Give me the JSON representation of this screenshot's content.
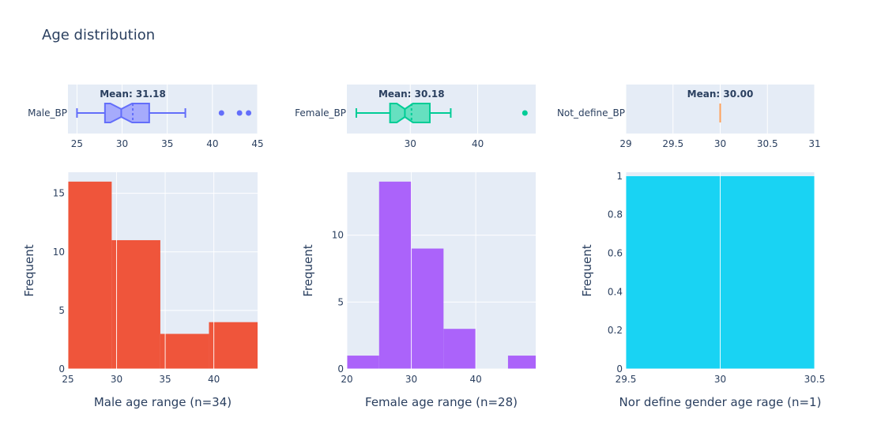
{
  "chart_data": {
    "title": "Age distribution",
    "panels": [
      {
        "id": "male",
        "box": {
          "name": "Male_BP",
          "color": "#636efa",
          "fill": "#a6abfc",
          "min": 25,
          "q1": 28.1,
          "median": 29.9,
          "mean": 31.18,
          "q3": 33.0,
          "max": 37,
          "notch_low": 28.7,
          "notch_high": 31.1,
          "outliers": [
            41,
            43,
            44
          ],
          "mean_label": "Mean: 31.18",
          "xlim": [
            24,
            45
          ],
          "ticks": [
            25,
            30,
            35,
            40,
            45
          ],
          "tick_labels": [
            "25",
            "30",
            "35",
            "40",
            "45"
          ]
        },
        "hist": {
          "type": "bar",
          "color": "#ef553b",
          "bins": [
            {
              "x0": 25,
              "x1": 29.5,
              "count": 16
            },
            {
              "x0": 29.5,
              "x1": 34.5,
              "count": 11
            },
            {
              "x0": 34.5,
              "x1": 39.5,
              "count": 3
            },
            {
              "x0": 39.5,
              "x1": 44.5,
              "count": 4
            }
          ],
          "xlim": [
            25,
            44.5
          ],
          "ylim": [
            0,
            16.8
          ],
          "xticks": [
            25,
            30,
            35,
            40
          ],
          "xtick_labels": [
            "25",
            "30",
            "35",
            "40"
          ],
          "yticks": [
            0,
            5,
            10,
            15
          ],
          "ytick_labels": [
            "0",
            "5",
            "10",
            "15"
          ],
          "xlabel": "Male age range (n=34)",
          "ylabel": "Frequent"
        }
      },
      {
        "id": "female",
        "box": {
          "name": "Female_BP",
          "color": "#00cc96",
          "fill": "#66e0c0",
          "min": 22,
          "q1": 27,
          "median": 29.2,
          "mean": 30.18,
          "q3": 32.9,
          "max": 36,
          "notch_low": 28.0,
          "notch_high": 30.4,
          "outliers": [
            47
          ],
          "mean_label": "Mean: 30.18",
          "xlim": [
            20.6,
            48.6
          ],
          "ticks": [
            30,
            40
          ],
          "tick_labels": [
            "30",
            "40"
          ]
        },
        "hist": {
          "type": "bar",
          "color": "#ab63fa",
          "bins": [
            {
              "x0": 20,
              "x1": 25,
              "count": 1
            },
            {
              "x0": 25,
              "x1": 30,
              "count": 14
            },
            {
              "x0": 30,
              "x1": 35,
              "count": 9
            },
            {
              "x0": 35,
              "x1": 40,
              "count": 3
            },
            {
              "x0": 40,
              "x1": 45,
              "count": 0
            },
            {
              "x0": 45,
              "x1": 50,
              "count": 1
            }
          ],
          "xlim": [
            20,
            49.3
          ],
          "ylim": [
            0,
            14.7
          ],
          "xticks": [
            20,
            30,
            40
          ],
          "xtick_labels": [
            "20",
            "30",
            "40"
          ],
          "yticks": [
            0,
            5,
            10
          ],
          "ytick_labels": [
            "0",
            "5",
            "10"
          ],
          "xlabel": "Female age range (n=28)",
          "ylabel": "Frequent"
        }
      },
      {
        "id": "undefined",
        "box": {
          "name": "Not_define_BP",
          "color": "#ffa15a",
          "fill": "#ffc89f",
          "min": 30,
          "q1": 30,
          "median": 30,
          "mean": 30.0,
          "q3": 30,
          "max": 30,
          "notch_low": 30,
          "notch_high": 30,
          "outliers": [],
          "mean_label": "Mean: 30.00",
          "xlim": [
            29,
            31
          ],
          "ticks": [
            29,
            29.5,
            30,
            30.5,
            31
          ],
          "tick_labels": [
            "29",
            "29.5",
            "30",
            "30.5",
            "31"
          ]
        },
        "hist": {
          "type": "bar",
          "color": "#19d3f3",
          "bins": [
            {
              "x0": 29.5,
              "x1": 30.5,
              "count": 1
            }
          ],
          "xlim": [
            29.5,
            30.5
          ],
          "ylim": [
            0,
            1.02
          ],
          "xticks": [
            29.5,
            30,
            30.5
          ],
          "xtick_labels": [
            "29.5",
            "30",
            "30.5"
          ],
          "yticks": [
            0,
            0.2,
            0.4,
            0.6,
            0.8,
            1
          ],
          "ytick_labels": [
            "0",
            "0.2",
            "0.4",
            "0.6",
            "0.8",
            "1"
          ],
          "xlabel": "Nor define gender age rage (n=1)",
          "ylabel": "Frequent"
        }
      }
    ]
  },
  "colors": {
    "plot_bg": "#e5ecf6",
    "grid": "#ffffff",
    "text": "#2a3f5f"
  }
}
